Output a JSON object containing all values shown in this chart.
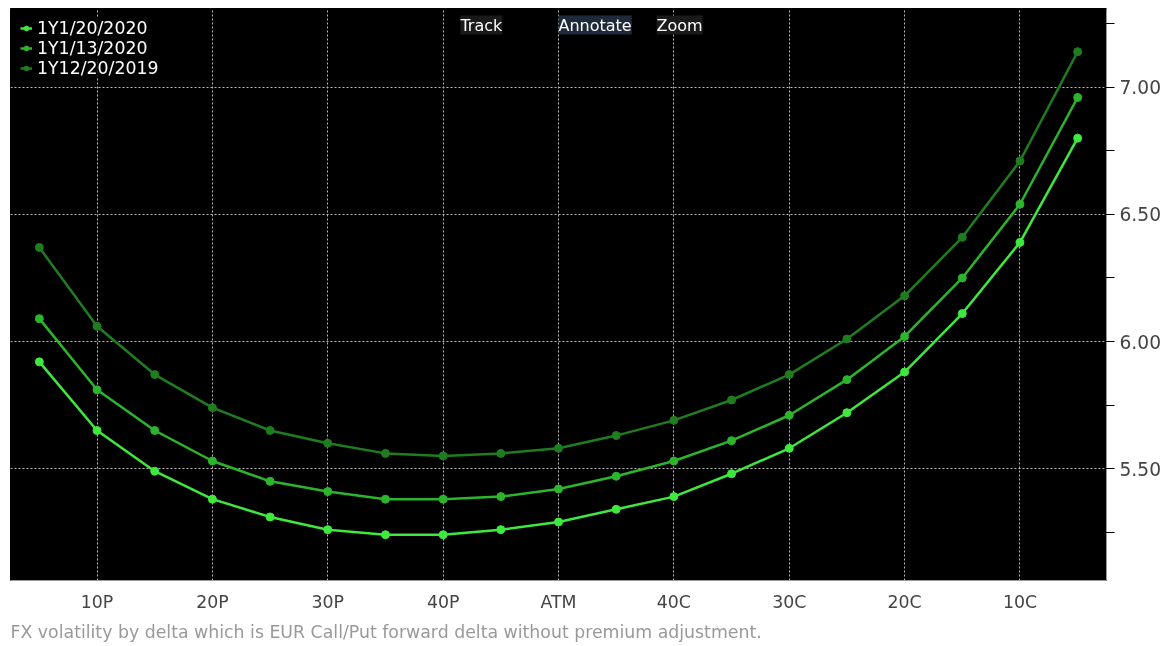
{
  "chart_data": {
    "type": "line",
    "categories": [
      null,
      "10P",
      null,
      "20P",
      null,
      "30P",
      null,
      "40P",
      null,
      "ATM",
      null,
      "40C",
      null,
      "30C",
      null,
      "20C",
      null,
      "10C",
      null
    ],
    "series": [
      {
        "name": "1Y1/20/2020",
        "color": "#3ee83e",
        "values": [
          5.92,
          5.65,
          5.49,
          5.38,
          5.31,
          5.26,
          5.24,
          5.24,
          5.26,
          5.29,
          5.34,
          5.39,
          5.48,
          5.58,
          5.72,
          5.88,
          6.11,
          6.39,
          6.8
        ]
      },
      {
        "name": "1Y1/13/2020",
        "color": "#2cb52c",
        "values": [
          6.09,
          5.81,
          5.65,
          5.53,
          5.45,
          5.41,
          5.38,
          5.38,
          5.39,
          5.42,
          5.47,
          5.53,
          5.61,
          5.71,
          5.85,
          6.02,
          6.25,
          6.54,
          6.96
        ]
      },
      {
        "name": "1Y12/20/2019",
        "color": "#1f7d1f",
        "values": [
          6.37,
          6.06,
          5.87,
          5.74,
          5.65,
          5.6,
          5.56,
          5.55,
          5.56,
          5.58,
          5.63,
          5.69,
          5.77,
          5.87,
          6.01,
          6.18,
          6.41,
          6.71,
          7.14
        ]
      }
    ],
    "ylim": [
      5.06,
      7.31
    ],
    "yticks": [
      {
        "value": 5.25,
        "label": null
      },
      {
        "value": 5.5,
        "label": "5.50"
      },
      {
        "value": 5.75,
        "label": null
      },
      {
        "value": 6.0,
        "label": "6.00"
      },
      {
        "value": 6.25,
        "label": null
      },
      {
        "value": 6.5,
        "label": "6.50"
      },
      {
        "value": 6.75,
        "label": null
      },
      {
        "value": 7.0,
        "label": "7.00"
      },
      {
        "value": 7.25,
        "label": null
      }
    ],
    "grid": true,
    "legend": "top left",
    "marker": "circle",
    "line_style": "solid",
    "annotations": [
      "FX volatility by delta which is EUR Call/Put forward delta without premium adjustment.",
      "Track",
      "Annotate",
      "Zoom"
    ]
  }
}
